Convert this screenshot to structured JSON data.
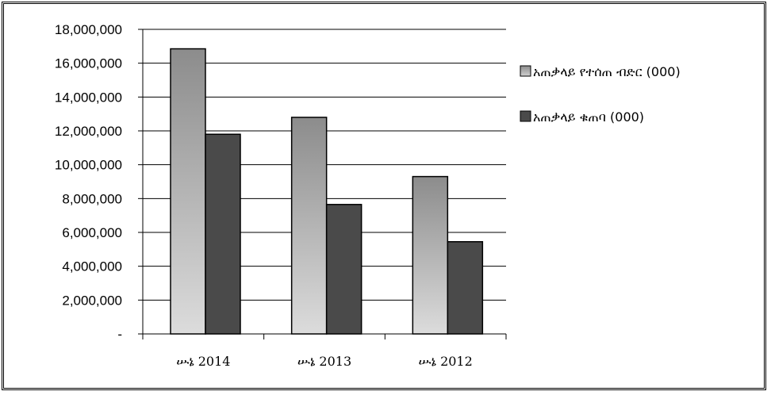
{
  "chart_data": {
    "type": "bar",
    "categories": [
      "ሡኔ 2014",
      "ሡኔ 2013",
      "ሡኔ 2012"
    ],
    "series": [
      {
        "name": "አጠቃላይ የተሰጠ ብድር (000)",
        "values": [
          16850000,
          12800000,
          9300000
        ],
        "color": "#a6a6a6"
      },
      {
        "name": "አጠቃላይ ቁጠባ (000)",
        "values": [
          11800000,
          7650000,
          5450000
        ],
        "color": "#4a4a4a"
      }
    ],
    "yticks": [
      {
        "value": 0,
        "label": "-"
      },
      {
        "value": 2000000,
        "label": "2,000,000"
      },
      {
        "value": 4000000,
        "label": "4,000,000"
      },
      {
        "value": 6000000,
        "label": "6,000,000"
      },
      {
        "value": 8000000,
        "label": "8,000,000"
      },
      {
        "value": 10000000,
        "label": "10,000,000"
      },
      {
        "value": 12000000,
        "label": "12,000,000"
      },
      {
        "value": 14000000,
        "label": "14,000,000"
      },
      {
        "value": 16000000,
        "label": "16,000,000"
      },
      {
        "value": 18000000,
        "label": "18,000,000"
      }
    ],
    "ylim": [
      0,
      18000000
    ],
    "grid": true,
    "legend_position": "right"
  }
}
